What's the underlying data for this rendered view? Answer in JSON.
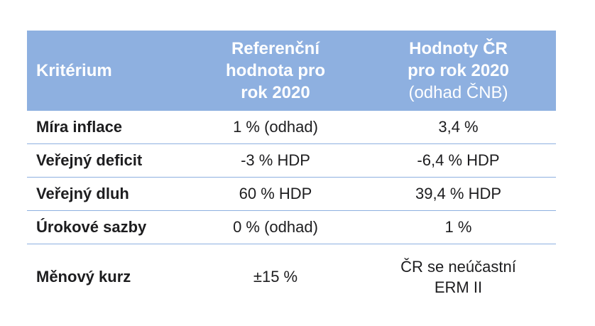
{
  "header": {
    "col1": "Kritérium",
    "col2_line1": "Referenční",
    "col2_line2": "hodnota pro",
    "col2_line3": "rok 2020",
    "col3_line1": "Hodnoty ČR",
    "col3_line2": "pro rok 2020",
    "col3_line3": "(odhad ČNB)"
  },
  "rows": [
    {
      "criterion": "Míra inflace",
      "reference": "1 % (odhad)",
      "value": "3,4 %"
    },
    {
      "criterion": "Veřejný deficit",
      "reference": "-3 % HDP",
      "value": "-6,4 % HDP"
    },
    {
      "criterion": "Veřejný dluh",
      "reference": "60 % HDP",
      "value": "39,4 % HDP"
    },
    {
      "criterion": "Úrokové sazby",
      "reference": "0 % (odhad)",
      "value": "1 %"
    },
    {
      "criterion": "Měnový kurz",
      "reference": "±15 %",
      "value_line1": "ČR se neúčastní",
      "value_line2": "ERM II"
    }
  ],
  "colors": {
    "header_bg": "#8eb0e0",
    "header_text": "#ffffff",
    "divider": "#8eb0e0"
  }
}
